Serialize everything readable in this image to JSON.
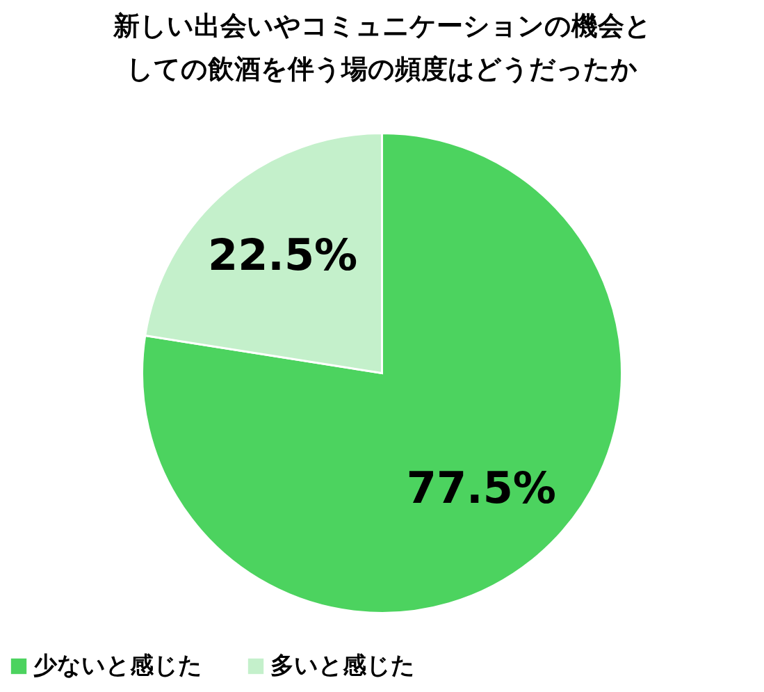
{
  "chart_data": {
    "type": "pie",
    "title": "新しい出会いやコミュニケーションの機会としての飲酒を伴う場の頻度はどうだったか",
    "categories": [
      "少ないと感じた",
      "多いと感じた"
    ],
    "values": [
      77.5,
      22.5
    ],
    "colors": [
      "#4cd35f",
      "#c4f0cb"
    ],
    "value_labels": [
      "77.5%",
      "22.5%"
    ],
    "legend": "bottom"
  }
}
